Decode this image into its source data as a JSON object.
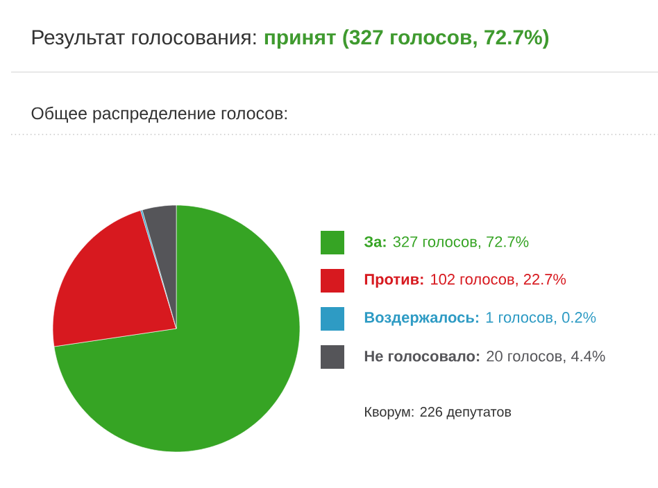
{
  "chart_data": {
    "type": "pie",
    "title": "Результат голосования:",
    "subtitle": "Общее распределение голосов:",
    "categories": [
      "**За:** 327 голосов, 72.7%",
      "**Против:** 102 голосов, 22.7%",
      "**Воздержалось:** 1 голосов, 0.2%",
      "**Не голосовало:** 20 голосов, 4.4%"
    ],
    "values": [
      327,
      102,
      1,
      20
    ],
    "colors": [
      "#36a424",
      "#d7191f",
      "#2e9bc4",
      "#555559"
    ],
    "legend": "right",
    "annotations": [
      "принят (327 голосов, 72.7%)",
      "Кворум: 226 депутатов"
    ]
  }
}
